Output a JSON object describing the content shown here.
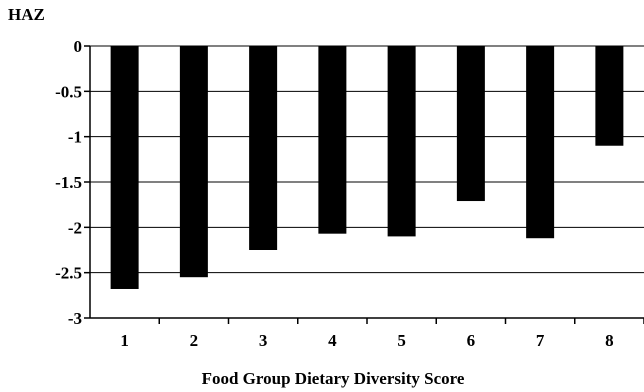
{
  "chart_data": {
    "type": "bar",
    "title": "",
    "ylabel": "HAZ",
    "xlabel": "Food Group Dietary Diversity Score",
    "categories": [
      "1",
      "2",
      "3",
      "4",
      "5",
      "6",
      "7",
      "8"
    ],
    "values": [
      -2.68,
      -2.55,
      -2.25,
      -2.07,
      -2.1,
      -1.71,
      -2.12,
      -1.1
    ],
    "ylim": [
      -3,
      0
    ],
    "yticks": [
      0,
      -0.5,
      -1,
      -1.5,
      -2,
      -2.5,
      -3
    ],
    "ytick_labels": [
      "0",
      "-0.5",
      "-1",
      "-1.5",
      "-2",
      "-2.5",
      "-3"
    ],
    "grid": true,
    "legend": "none",
    "bar_color": "#000000",
    "grid_color": "#000000"
  }
}
